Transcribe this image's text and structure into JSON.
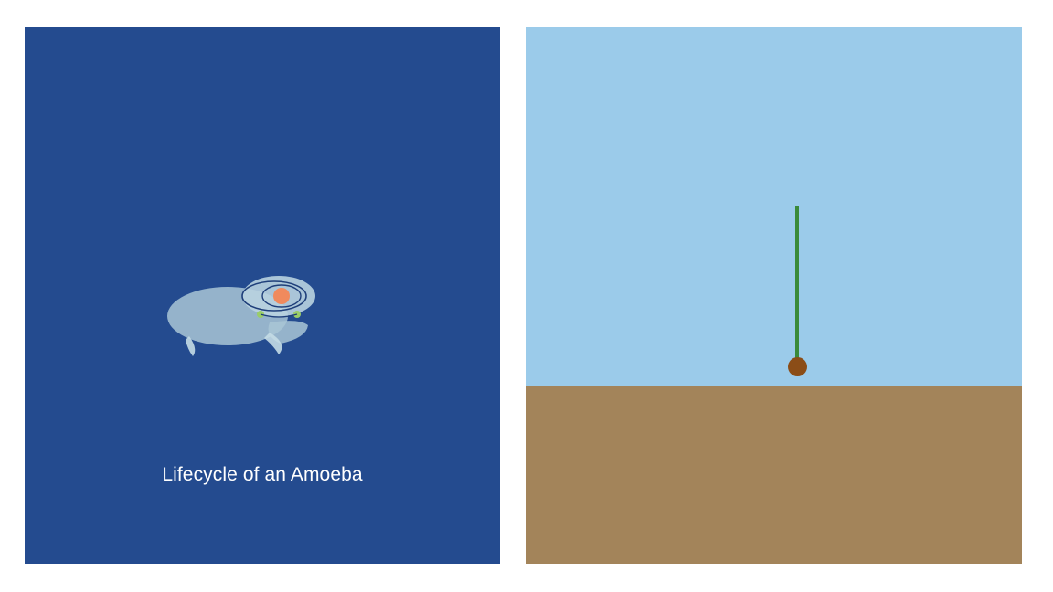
{
  "left_panel": {
    "caption": "Lifecycle of an Amoeba",
    "background_color": "#244b8f",
    "amoeba_body_color": "#a9c6d6",
    "nucleus_color": "#f08a5d",
    "vacuole_color": "#9acd68"
  },
  "right_panel": {
    "sky_color": "#9bcbea",
    "ground_color": "#a3845a",
    "stem_color": "#3a8a3a",
    "seed_color": "#8b4d17"
  }
}
